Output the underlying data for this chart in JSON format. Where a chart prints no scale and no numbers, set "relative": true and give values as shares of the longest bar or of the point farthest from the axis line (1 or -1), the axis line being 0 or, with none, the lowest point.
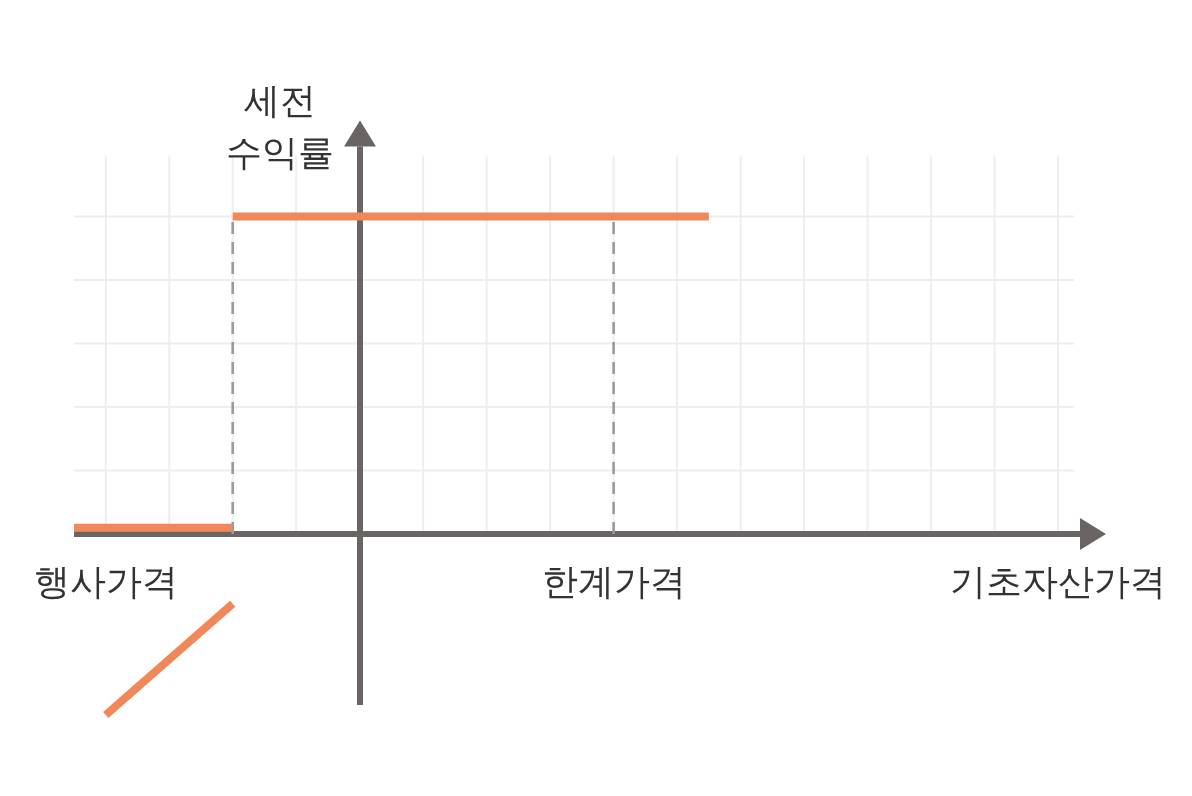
{
  "chart_data": {
    "type": "line",
    "relative": true,
    "ylabel": "세전\n수익률",
    "xlabel": "기초자산가격",
    "categories": [
      null,
      "행사가격",
      null,
      null,
      null,
      null,
      null,
      null,
      null,
      null,
      null,
      null,
      null,
      null,
      null,
      null,
      null,
      "한계가격",
      null,
      null,
      null,
      null,
      null,
      null,
      null,
      null,
      null,
      null,
      null,
      null,
      null,
      null
    ],
    "grid": true,
    "marker": "none",
    "series": [
      {
        "color": "#f0885a",
        "values": [
          0.02,
          0.02,
          0.02,
          0.02,
          0.02,
          0.02,
          null,
          null,
          null,
          null,
          null,
          null,
          null,
          null,
          null,
          null,
          null,
          null,
          null,
          null,
          null,
          null,
          null,
          null,
          null,
          null,
          null,
          null,
          null,
          null,
          null,
          null
        ]
      },
      {
        "color": "#f0885a",
        "values": [
          null,
          null,
          null,
          null,
          null,
          1,
          1,
          1,
          1,
          1,
          1,
          1,
          1,
          1,
          1,
          1,
          1,
          1,
          1,
          1,
          1,
          null,
          null,
          null,
          null,
          null,
          null,
          null,
          null,
          null,
          null,
          null
        ]
      },
      {
        "color": "#f0885a",
        "values": [
          null,
          -0.57,
          null,
          null,
          null,
          -0.22,
          null,
          null,
          null,
          null,
          null,
          null,
          null,
          null,
          null,
          null,
          null,
          null,
          null,
          null,
          null,
          null,
          null,
          null,
          null,
          null,
          null,
          null,
          null,
          null,
          null,
          null
        ]
      }
    ],
    "ref_lines": [
      {
        "axis": "x",
        "value": "한계가격",
        "color": "#9a9a9a",
        "line_style": "dashed"
      }
    ]
  }
}
